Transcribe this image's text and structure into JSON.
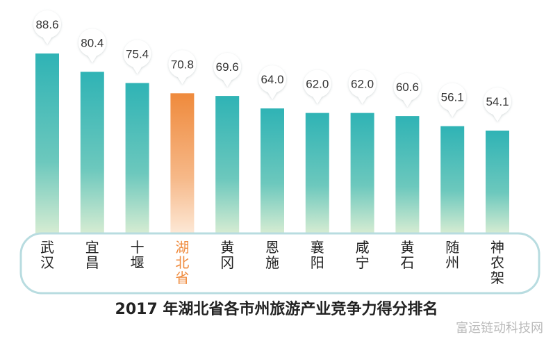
{
  "chart_data": {
    "type": "bar",
    "title": "2017 年湖北省各市州旅游产业竞争力得分排名",
    "categories": [
      "武汉",
      "宜昌",
      "十堰",
      "湖北省",
      "黄冈",
      "恩施",
      "襄阳",
      "咸宁",
      "黄石",
      "随州",
      "神农架"
    ],
    "value_labels": [
      "88.6",
      "80.4",
      "75.4",
      "70.8",
      "69.6",
      "64.0",
      "62.0",
      "62.0",
      "60.6",
      "56.1",
      "54.1"
    ],
    "values": [
      88.6,
      80.4,
      75.4,
      70.8,
      69.6,
      64.0,
      62.0,
      62.0,
      60.6,
      56.1,
      54.1
    ],
    "highlight_category": "湖北省",
    "colors": {
      "bar_top": "#2fb3b5",
      "bar_bottom": "#d6ecd2",
      "highlight_top": "#ef8a3c",
      "highlight_bottom": "#fde8d6",
      "label_text": "#222222",
      "highlight_label_text": "#ef8a3c",
      "band_border": "#b8dce0"
    },
    "grid": false,
    "legend": "none"
  },
  "watermark": "富运链动科技网"
}
